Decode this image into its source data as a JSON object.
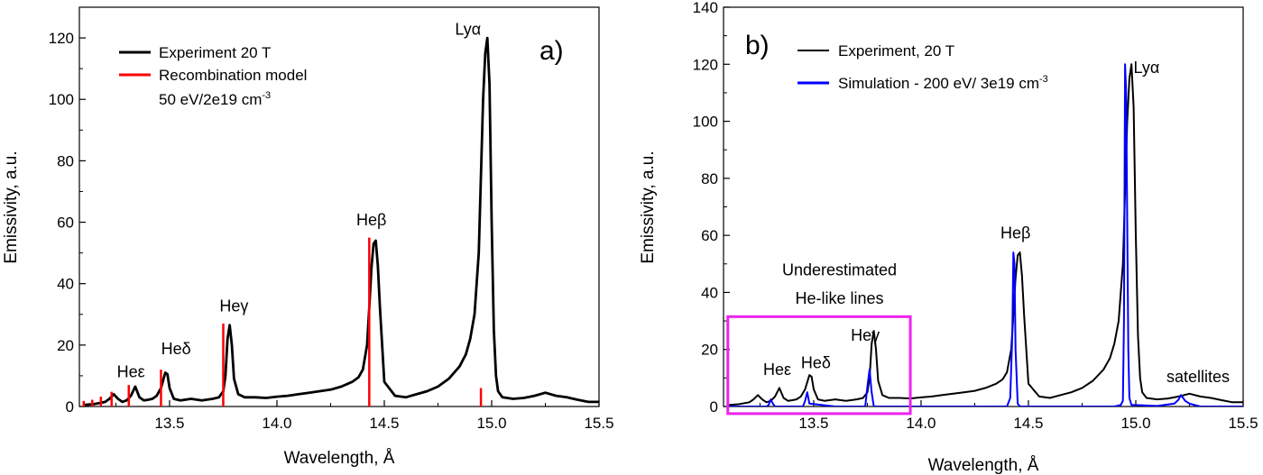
{
  "chart_data": [
    {
      "type": "line",
      "panel_label": "a)",
      "xlabel": "Wavelength, Å",
      "ylabel": "Emissivity, a.u.",
      "xlim": [
        13.08,
        15.5
      ],
      "ylim": [
        0,
        130
      ],
      "xticks": [
        13.5,
        14.0,
        14.5,
        15.0,
        15.5
      ],
      "xtick_labels": [
        "13.5",
        "14.0",
        "14.5",
        "15.0",
        "15.5"
      ],
      "yticks": [
        0,
        20,
        40,
        60,
        80,
        100,
        120
      ],
      "ytick_labels": [
        "0",
        "20",
        "40",
        "60",
        "80",
        "100",
        "120"
      ],
      "legend": {
        "placement": "top-left",
        "entries": [
          {
            "label": "Experiment 20 T",
            "color": "#000000"
          },
          {
            "label": "Recombination model",
            "color": "#ff0000"
          }
        ],
        "extra_line_main": "50 eV/2e19 cm",
        "extra_line_sup": "-3"
      },
      "series": [
        {
          "name": "Experiment 20 T",
          "color": "#000000",
          "style": "line",
          "x": [
            13.1,
            13.15,
            13.18,
            13.2,
            13.22,
            13.24,
            13.26,
            13.28,
            13.3,
            13.32,
            13.34,
            13.36,
            13.38,
            13.4,
            13.42,
            13.44,
            13.46,
            13.48,
            13.49,
            13.5,
            13.52,
            13.55,
            13.6,
            13.65,
            13.7,
            13.73,
            13.75,
            13.76,
            13.77,
            13.78,
            13.79,
            13.8,
            13.82,
            13.85,
            13.9,
            13.95,
            14.0,
            14.05,
            14.1,
            14.15,
            14.2,
            14.25,
            14.3,
            14.35,
            14.38,
            14.4,
            14.42,
            14.43,
            14.44,
            14.45,
            14.46,
            14.47,
            14.48,
            14.5,
            14.55,
            14.6,
            14.65,
            14.7,
            14.75,
            14.8,
            14.85,
            14.88,
            14.9,
            14.92,
            14.94,
            14.95,
            14.96,
            14.97,
            14.98,
            14.99,
            15.0,
            15.01,
            15.02,
            15.03,
            15.05,
            15.1,
            15.15,
            15.2,
            15.25,
            15.3,
            15.35,
            15.4,
            15.45,
            15.5
          ],
          "y": [
            0.5,
            0.8,
            1.2,
            1.5,
            2.5,
            4.0,
            2.5,
            1.5,
            2.0,
            3.5,
            6.5,
            3.0,
            2.0,
            2.2,
            2.5,
            3.5,
            6.0,
            11.0,
            10.5,
            6.0,
            2.5,
            2.0,
            2.5,
            2.0,
            2.5,
            3.0,
            5.0,
            10.0,
            22.0,
            26.5,
            20.0,
            9.0,
            4.0,
            3.0,
            3.0,
            2.8,
            3.2,
            3.5,
            4.0,
            4.5,
            5.0,
            5.5,
            6.5,
            8.0,
            9.5,
            12.0,
            20.0,
            32.0,
            45.0,
            53.0,
            54.0,
            46.0,
            32.0,
            8.0,
            3.5,
            3.0,
            4.0,
            5.0,
            6.5,
            9.0,
            13.0,
            17.0,
            22.0,
            30.0,
            50.0,
            75.0,
            100.0,
            115.0,
            120.0,
            105.0,
            60.0,
            25.0,
            10.0,
            5.0,
            3.0,
            2.5,
            2.8,
            3.5,
            4.5,
            3.5,
            3.0,
            2.2,
            1.5,
            1.5
          ]
        },
        {
          "name": "Recombination model",
          "color": "#ff0000",
          "style": "sticks",
          "x": [
            13.1,
            13.14,
            13.18,
            13.23,
            13.31,
            13.46,
            13.75,
            14.43,
            14.95
          ],
          "y": [
            1.8,
            2.2,
            3.2,
            4.8,
            7.0,
            12.0,
            27.0,
            55.0,
            6.0
          ]
        }
      ],
      "annotations": [
        {
          "text": "Heε",
          "x": 13.32,
          "y": 9.5
        },
        {
          "text": "Heδ",
          "x": 13.53,
          "y": 17.0
        },
        {
          "text": "Heγ",
          "x": 13.8,
          "y": 31.0
        },
        {
          "text": "Heβ",
          "x": 14.44,
          "y": 59.0
        },
        {
          "text": "Lyα",
          "x": 14.89,
          "y": 121.0
        }
      ]
    },
    {
      "type": "line",
      "panel_label": "b)",
      "xlabel": "Wavelength, Å",
      "ylabel": "Emissivity, a.u.",
      "xlim": [
        13.08,
        15.5
      ],
      "ylim": [
        0,
        140
      ],
      "xticks": [
        13.5,
        14.0,
        14.5,
        15.0,
        15.5
      ],
      "xtick_labels": [
        "13.5",
        "14.0",
        "14.5",
        "15.0",
        "15.5"
      ],
      "yticks": [
        0,
        20,
        40,
        60,
        80,
        100,
        120,
        140
      ],
      "ytick_labels": [
        "0",
        "20",
        "40",
        "60",
        "80",
        "100",
        "120",
        "140"
      ],
      "legend": {
        "placement": "top-left",
        "entries": [
          {
            "label": "Experiment, 20 T",
            "color": "#000000"
          },
          {
            "label_main": "Simulation - 200 eV/ 3e19 cm",
            "label_sup": "-3",
            "color": "#0000ff"
          }
        ]
      },
      "series": [
        {
          "name": "Experiment, 20 T",
          "color": "#000000",
          "style": "line",
          "x": [
            13.1,
            13.15,
            13.18,
            13.2,
            13.22,
            13.24,
            13.26,
            13.28,
            13.3,
            13.32,
            13.34,
            13.36,
            13.38,
            13.4,
            13.42,
            13.44,
            13.46,
            13.48,
            13.49,
            13.5,
            13.52,
            13.55,
            13.6,
            13.65,
            13.7,
            13.73,
            13.75,
            13.76,
            13.77,
            13.78,
            13.79,
            13.8,
            13.82,
            13.85,
            13.9,
            13.95,
            14.0,
            14.05,
            14.1,
            14.15,
            14.2,
            14.25,
            14.3,
            14.35,
            14.38,
            14.4,
            14.42,
            14.43,
            14.44,
            14.45,
            14.46,
            14.47,
            14.48,
            14.5,
            14.55,
            14.6,
            14.65,
            14.7,
            14.75,
            14.8,
            14.85,
            14.88,
            14.9,
            14.92,
            14.94,
            14.95,
            14.96,
            14.97,
            14.98,
            14.99,
            15.0,
            15.01,
            15.02,
            15.03,
            15.05,
            15.1,
            15.15,
            15.2,
            15.25,
            15.3,
            15.35,
            15.4,
            15.45,
            15.5
          ],
          "y": [
            0.5,
            0.8,
            1.2,
            1.5,
            2.5,
            4.0,
            2.5,
            1.5,
            2.0,
            3.5,
            6.5,
            3.0,
            2.0,
            2.2,
            2.5,
            3.5,
            6.0,
            11.0,
            10.5,
            6.0,
            2.5,
            2.0,
            2.5,
            2.0,
            2.5,
            3.0,
            5.0,
            10.0,
            22.0,
            26.5,
            20.0,
            9.0,
            4.0,
            3.0,
            3.0,
            2.8,
            3.2,
            3.5,
            4.0,
            4.5,
            5.0,
            5.5,
            6.5,
            8.0,
            9.5,
            12.0,
            20.0,
            32.0,
            45.0,
            53.0,
            54.0,
            46.0,
            32.0,
            8.0,
            3.5,
            3.0,
            4.0,
            5.0,
            6.5,
            9.0,
            13.0,
            17.0,
            22.0,
            30.0,
            50.0,
            75.0,
            100.0,
            115.0,
            120.0,
            105.0,
            60.0,
            25.0,
            10.0,
            5.0,
            3.0,
            2.5,
            2.8,
            3.5,
            4.5,
            3.5,
            3.0,
            2.2,
            1.5,
            1.5
          ]
        },
        {
          "name": "Simulation - 200 eV/ 3e19 cm-3",
          "color": "#0000ff",
          "style": "line",
          "x": [
            13.1,
            13.2,
            13.28,
            13.29,
            13.3,
            13.31,
            13.32,
            13.4,
            13.45,
            13.46,
            13.47,
            13.48,
            13.6,
            13.74,
            13.75,
            13.76,
            13.77,
            13.78,
            14.0,
            14.4,
            14.415,
            14.425,
            14.43,
            14.435,
            14.44,
            14.45,
            14.46,
            14.6,
            14.9,
            14.93,
            14.94,
            14.945,
            14.95,
            14.955,
            14.96,
            14.965,
            14.97,
            14.98,
            15.0,
            15.1,
            15.18,
            15.2,
            15.21,
            15.22,
            15.23,
            15.25,
            15.3,
            15.5
          ],
          "y": [
            0,
            0,
            0,
            0.5,
            2.5,
            1.0,
            0,
            0,
            0,
            2.0,
            5.0,
            1.0,
            0,
            0,
            7.0,
            13.0,
            5.0,
            0,
            0,
            0,
            3.0,
            25.0,
            54.0,
            50.0,
            20.0,
            1.0,
            0,
            0,
            0,
            0.5,
            2.0,
            30.0,
            120.0,
            110.0,
            65.0,
            20.0,
            3.0,
            0.5,
            0.5,
            0.2,
            1.0,
            2.5,
            4.0,
            3.0,
            2.0,
            1.0,
            0,
            0
          ]
        }
      ],
      "annotations": [
        {
          "text": "Heε",
          "x": 13.33,
          "y": 11.0
        },
        {
          "text": "Heδ",
          "x": 13.51,
          "y": 13.5
        },
        {
          "text": "Heγ",
          "x": 13.74,
          "y": 23.0
        },
        {
          "text": "Heβ",
          "x": 14.44,
          "y": 59.0
        },
        {
          "text": "Lyα",
          "x": 15.05,
          "y": 117.0
        },
        {
          "text": "satellites",
          "x": 15.29,
          "y": 8.5
        },
        {
          "text": "Underestimated",
          "x": 13.62,
          "y": 46.0
        },
        {
          "text": "He-like lines",
          "x": 13.62,
          "y": 36.0
        }
      ],
      "highlight_box": {
        "color": "#ee22ee",
        "x0": 13.1,
        "x1": 13.95,
        "y0": -2.5,
        "y1": 31.5
      }
    }
  ]
}
